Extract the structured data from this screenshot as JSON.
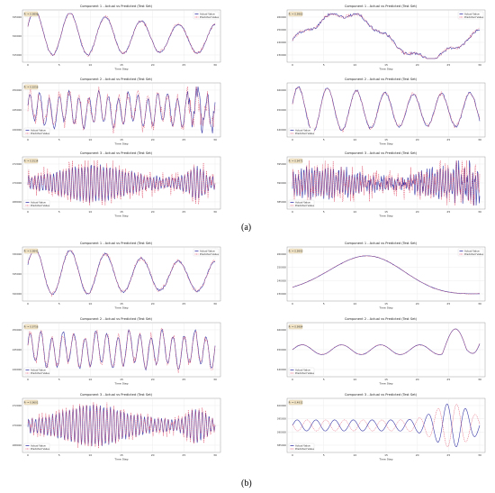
{
  "figure": {
    "captions": {
      "a": "(a)",
      "b": "(b)"
    },
    "legend": {
      "actual": "Actual Value",
      "predicted": "Predicted Value"
    },
    "colors": {
      "actual": "#3a3aa8",
      "predicted": "#e0506a",
      "grid": "#e3e3e3",
      "badge_bg": "#f3e6c8",
      "badge_border": "#c9b48a"
    }
  },
  "chart_data": [
    {
      "id": "a-left-1",
      "type": "line",
      "title": "Component 1 - Actual vs Predicted (Test Set)",
      "badge": "R² = 0.9896",
      "xlabel": "Time Step",
      "x_ticks": [
        "0",
        "5",
        "10",
        "15",
        "20",
        "25",
        "30"
      ],
      "y_ticks": [
        "315000",
        "320000",
        "325000"
      ],
      "y_top_label": "330000",
      "legend_position": "top-right",
      "signal": {
        "kind": "mid",
        "amp": 0.38,
        "cycles": 5.2,
        "trend": -0.15,
        "noise": 0.04,
        "err": 0.03
      }
    },
    {
      "id": "a-right-1",
      "type": "line",
      "title": "Component 1 - Actual vs Predicted (Test Set)",
      "badge": "R² = 0.9983",
      "xlabel": "Time Step",
      "x_ticks": [
        "0",
        "5",
        "10",
        "15",
        "20",
        "25",
        "30"
      ],
      "y_ticks": [
        "230000",
        "240000",
        "250000",
        "260000"
      ],
      "legend_position": "top-right",
      "signal": {
        "kind": "slow",
        "amp": 0.4,
        "cycles": 1.2,
        "trend": -0.3,
        "noise": 0.06,
        "err": 0.015
      }
    },
    {
      "id": "a-left-2",
      "type": "line",
      "title": "Component 2 - Actual vs Predicted (Test Set)",
      "badge": "R² = 0.9256",
      "xlabel": "Time Step",
      "x_ticks": [
        "0",
        "5",
        "10",
        "15",
        "20",
        "25",
        "30"
      ],
      "y_ticks": [
        "240000",
        "245000",
        "250000"
      ],
      "legend_position": "bottom-left",
      "signal": {
        "kind": "fast",
        "amp": 0.3,
        "cycles": 19,
        "trend": 0,
        "noise": 0.05,
        "err": 0.12,
        "spike_end": true
      }
    },
    {
      "id": "a-right-2",
      "type": "line",
      "title": "Component 2 - Actual vs Predicted (Test Set)",
      "badge": "",
      "xlabel": "Time Step",
      "x_ticks": [
        "0",
        "5",
        "10",
        "15",
        "20",
        "25",
        "30"
      ],
      "y_ticks": [
        "440000",
        "450000",
        "460000"
      ],
      "legend_position": "bottom-left",
      "signal": {
        "kind": "mid",
        "amp": 0.4,
        "cycles": 6.5,
        "trend": 0,
        "noise": 0.05,
        "err": 0.03
      }
    },
    {
      "id": "a-left-3",
      "type": "line",
      "title": "Component 3 - Actual vs Predicted (Test Set)",
      "badge": "R² = 0.9134",
      "xlabel": "Time Step",
      "x_ticks": [
        "0",
        "5",
        "10",
        "15",
        "20",
        "25",
        "30"
      ],
      "y_ticks": [
        "268000",
        "270000",
        "272000"
      ],
      "legend_position": "bottom-left",
      "signal": {
        "kind": "burst",
        "amp": 0.4,
        "cycles": 60,
        "trend": 0,
        "noise": 0.08,
        "err": 0.14
      }
    },
    {
      "id": "a-right-3",
      "type": "line",
      "title": "Component 3 - Actual vs Predicted (Test Set)",
      "badge": "R² = 0.9472",
      "xlabel": "Time Step",
      "x_ticks": [
        "0",
        "5",
        "10",
        "15",
        "20",
        "25",
        "30"
      ],
      "y_ticks": [
        "385000",
        "390000",
        "395000"
      ],
      "legend_position": "bottom-left",
      "signal": {
        "kind": "noisy",
        "amp": 0.3,
        "cycles": 70,
        "trend": 0,
        "noise": 0.25,
        "err": 0.15,
        "spike_end": true
      }
    },
    {
      "id": "b-left-1",
      "type": "line",
      "title": "Component 1 - Actual vs Predicted (Test Set)",
      "badge": "R² = 0.9842",
      "xlabel": "Time Step",
      "x_ticks": [
        "0",
        "5",
        "10",
        "15",
        "20",
        "25",
        "30"
      ],
      "y_ticks": [
        "320000",
        "325000",
        "330000"
      ],
      "legend_position": "top-right",
      "signal": {
        "kind": "mid",
        "amp": 0.38,
        "cycles": 5.2,
        "trend": -0.12,
        "noise": 0.04,
        "err": 0.04
      }
    },
    {
      "id": "b-right-1",
      "type": "line",
      "title": "Component 1 - Actual vs Predicted (Test Set)",
      "badge": "R² = 0.9993",
      "xlabel": "Time Step",
      "x_ticks": [
        "0",
        "5",
        "10",
        "15",
        "20",
        "25",
        "30"
      ],
      "y_ticks": [
        "230000",
        "240000",
        "250000",
        "260000"
      ],
      "legend_position": "top-right",
      "signal": {
        "kind": "hump",
        "amp": 0.42,
        "cycles": 1,
        "trend": 0,
        "noise": 0.0,
        "err": 0.01
      }
    },
    {
      "id": "b-left-2",
      "type": "line",
      "title": "Component 2 - Actual vs Predicted (Test Set)",
      "badge": "R² = 0.9756",
      "xlabel": "Time Step",
      "x_ticks": [
        "0",
        "5",
        "10",
        "15",
        "20",
        "25",
        "30"
      ],
      "y_ticks": [
        "240000",
        "245000",
        "250000"
      ],
      "legend_position": "bottom-left",
      "signal": {
        "kind": "fast",
        "amp": 0.32,
        "cycles": 17,
        "trend": 0,
        "noise": 0.05,
        "err": 0.08
      }
    },
    {
      "id": "b-right-2",
      "type": "line",
      "title": "Component 2 - Actual vs Predicted (Test Set)",
      "badge": "R² = 0.9984",
      "xlabel": "Time Step",
      "x_ticks": [
        "0",
        "5",
        "10",
        "15",
        "20",
        "25",
        "30"
      ],
      "y_ticks": [
        "440000",
        "450000",
        "460000"
      ],
      "legend_position": "bottom-left",
      "signal": {
        "kind": "wavy",
        "amp": 0.2,
        "cycles": 5,
        "trend": 0,
        "noise": 0.0,
        "err": 0.01
      }
    },
    {
      "id": "b-left-3",
      "type": "line",
      "title": "Component 3 - Actual vs Predicted (Test Set)",
      "badge": "R² = 0.9601",
      "xlabel": "Time Step",
      "x_ticks": [
        "0",
        "5",
        "10",
        "15",
        "20",
        "25",
        "30"
      ],
      "y_ticks": [
        "268000",
        "270000",
        "272000"
      ],
      "legend_position": "bottom-left",
      "signal": {
        "kind": "burst",
        "amp": 0.42,
        "cycles": 55,
        "trend": 0,
        "noise": 0.06,
        "err": 0.1
      }
    },
    {
      "id": "b-right-3",
      "type": "line",
      "title": "Component 3 - Actual vs Predicted (Test Set)",
      "badge": "R² = 0.4932",
      "xlabel": "Time Step",
      "x_ticks": [
        "0",
        "5",
        "10",
        "15",
        "20",
        "25",
        "30"
      ],
      "y_ticks": [
        "385000",
        "390000",
        "395000",
        "400000"
      ],
      "legend_position": "bottom-left",
      "signal": {
        "kind": "phase",
        "amp": 0.38,
        "cycles": 10,
        "trend": 0,
        "noise": 0.0,
        "err": 0.0
      }
    }
  ]
}
